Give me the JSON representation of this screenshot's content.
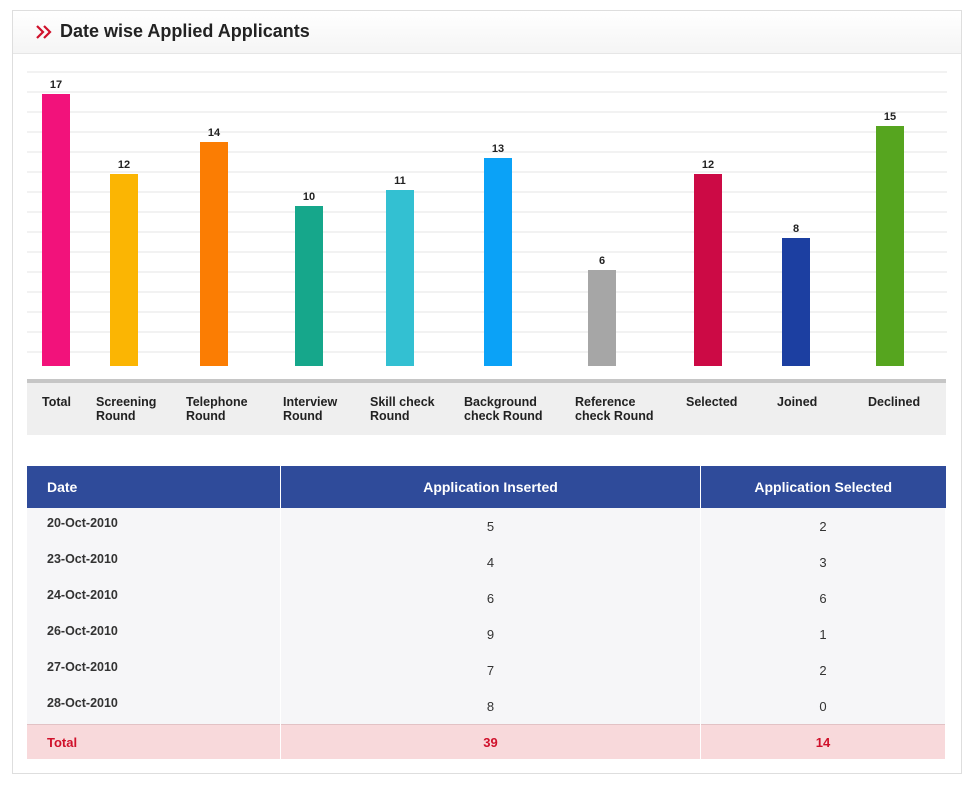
{
  "header": {
    "title": "Date wise Applied Applicants",
    "icon": "double-chevron-right-icon",
    "accent_color": "#d0112b"
  },
  "chart_data": {
    "type": "bar",
    "categories": [
      "Total",
      "Screening\nRound",
      "Telephone\nRound",
      "Interview\nRound",
      "Skill check\nRound",
      "Background\ncheck Round",
      "Reference\ncheck Round",
      "Selected",
      "Joined",
      "Declined"
    ],
    "values": [
      17,
      12,
      14,
      10,
      11,
      13,
      6,
      12,
      8,
      15
    ],
    "colors": [
      "#f2127b",
      "#fbb503",
      "#fb7d03",
      "#16a78b",
      "#33c0d2",
      "#0ba2f7",
      "#a6a6a6",
      "#cc0a45",
      "#1c3fa1",
      "#56a51f"
    ],
    "ylim": [
      0,
      18
    ],
    "grid": true,
    "title": "",
    "xlabel": "",
    "ylabel": ""
  },
  "table": {
    "columns": [
      "Date",
      "Application Inserted",
      "Application Selected"
    ],
    "rows": [
      {
        "date": "20-Oct-2010",
        "inserted": "5",
        "selected": "2"
      },
      {
        "date": "23-Oct-2010",
        "inserted": "4",
        "selected": "3"
      },
      {
        "date": "24-Oct-2010",
        "inserted": "6",
        "selected": "6"
      },
      {
        "date": "26-Oct-2010",
        "inserted": "9",
        "selected": "1"
      },
      {
        "date": "27-Oct-2010",
        "inserted": "7",
        "selected": "2"
      },
      {
        "date": "28-Oct-2010",
        "inserted": "8",
        "selected": "0"
      }
    ],
    "total": {
      "label": "Total",
      "inserted": "39",
      "selected": "14"
    }
  }
}
